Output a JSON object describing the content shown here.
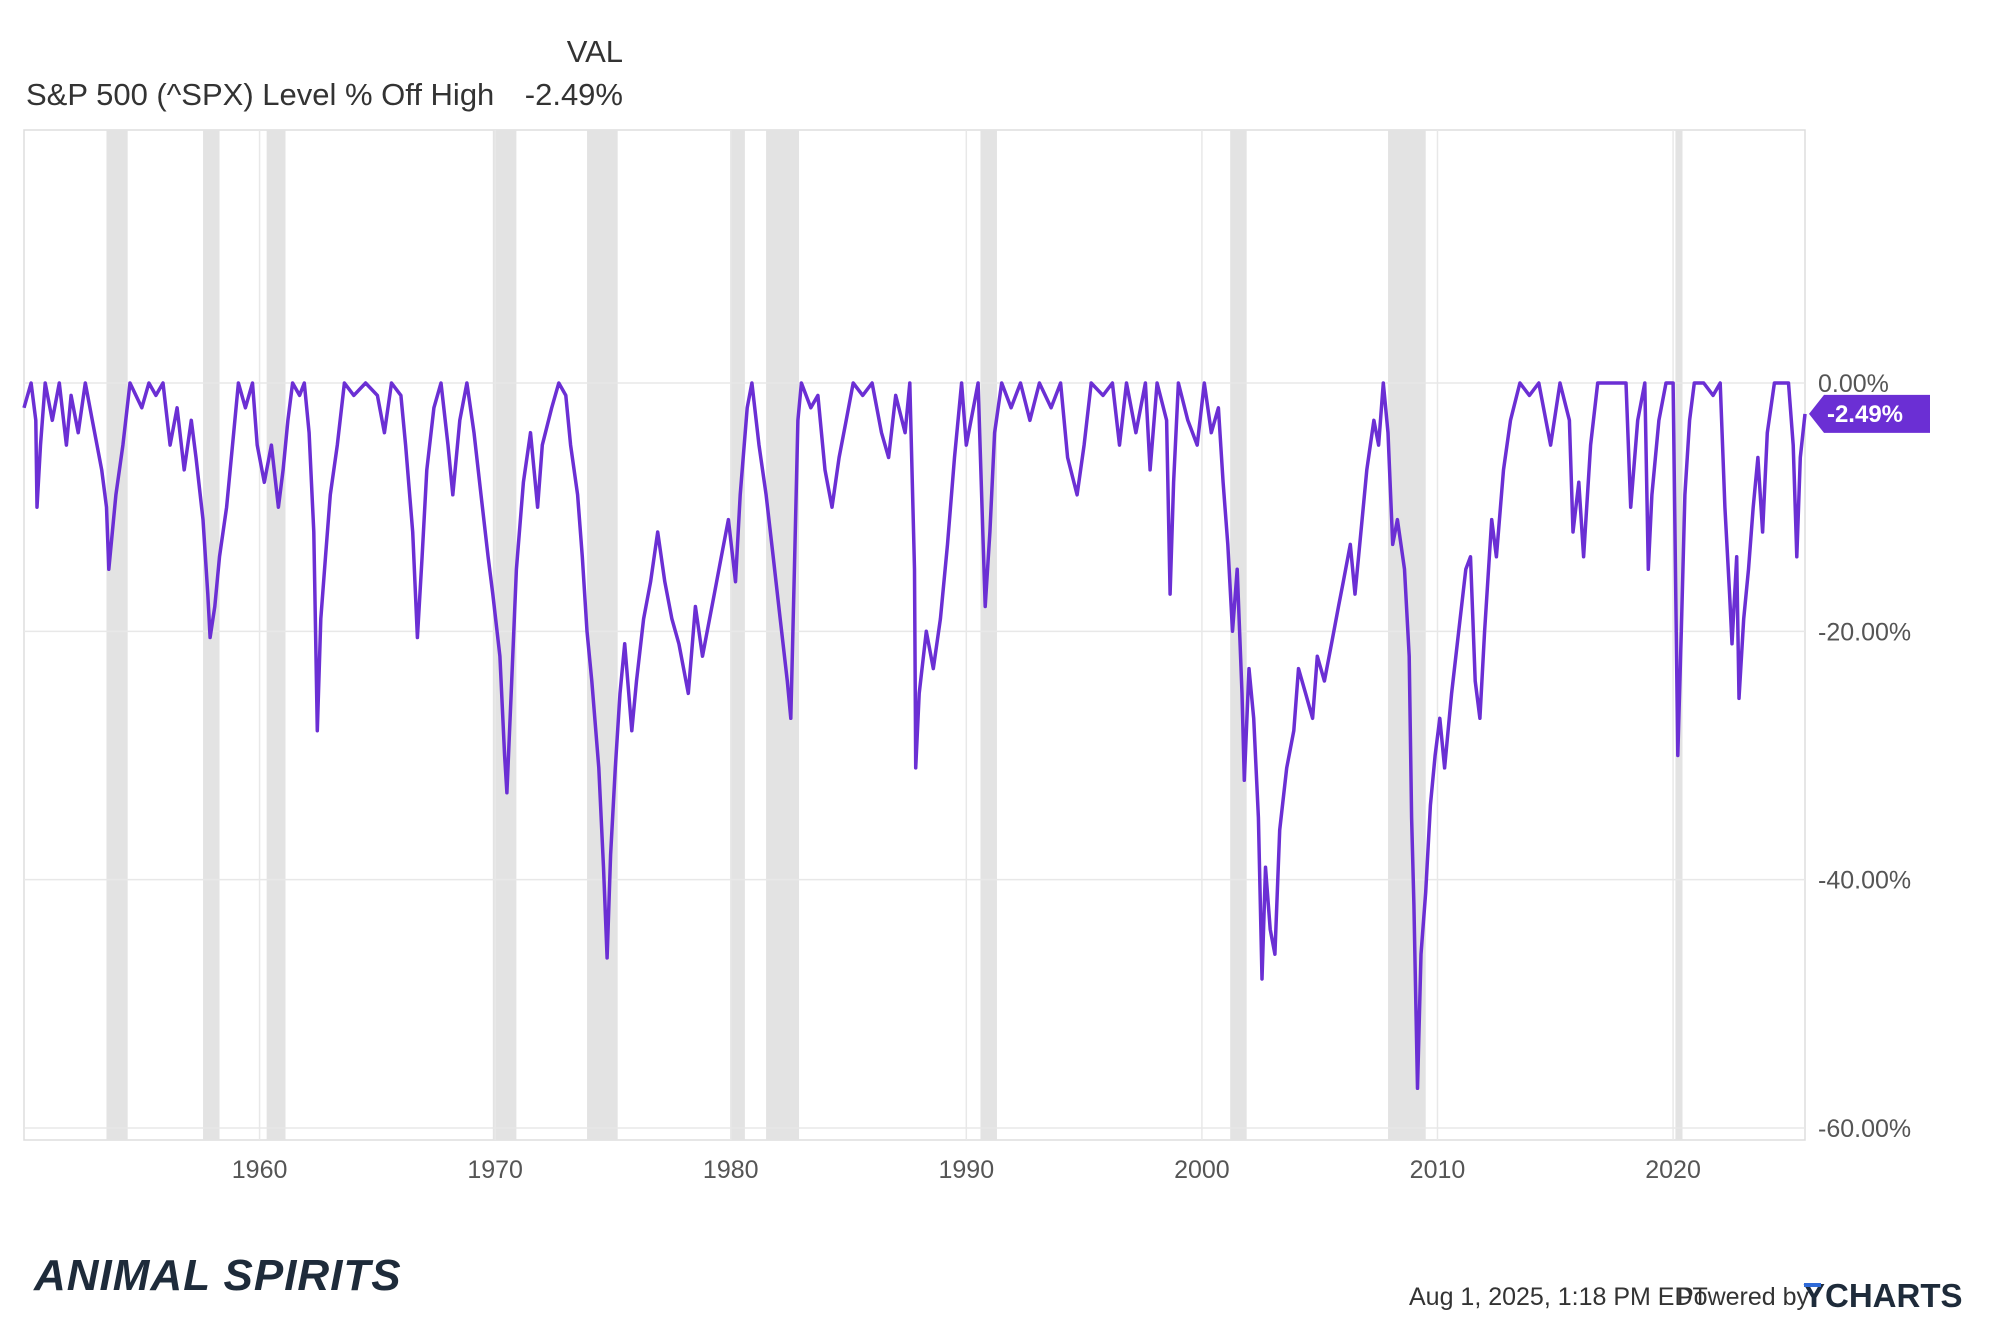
{
  "legend": {
    "header": "VAL",
    "series_label": "S&P 500 (^SPX) Level % Off High",
    "series_value": "-2.49%"
  },
  "footer": {
    "logo_text": "ANIMAL SPIRITS",
    "timestamp": "Aug 1, 2025, 1:18 PM EDT",
    "powered_by": "Powered by",
    "brand": "YCHARTS"
  },
  "colors": {
    "series": "#6B2FD4",
    "recession_band": "#E3E3E3",
    "grid": "#E8E8E8",
    "text": "#333333",
    "logo": "#1E2B3A"
  },
  "chart_data": {
    "type": "line",
    "title": "",
    "xlabel": "",
    "ylabel": "",
    "xlim": [
      1950.0,
      2025.6
    ],
    "ylim": [
      -60,
      20
    ],
    "x_ticks": [
      {
        "value": 1960,
        "label": "1960"
      },
      {
        "value": 1970,
        "label": "1970"
      },
      {
        "value": 1980,
        "label": "1980"
      },
      {
        "value": 1990,
        "label": "1990"
      },
      {
        "value": 2000,
        "label": "2000"
      },
      {
        "value": 2010,
        "label": "2010"
      },
      {
        "value": 2020,
        "label": "2020"
      }
    ],
    "y_ticks": [
      {
        "value": 0,
        "label": "0.00%"
      },
      {
        "value": -20,
        "label": "-20.00%"
      },
      {
        "value": -40,
        "label": "-40.00%"
      },
      {
        "value": -60,
        "label": "-60.00%"
      }
    ],
    "last_value_label": "-2.49%",
    "last_value": -2.49,
    "recessions": [
      [
        1953.5,
        1954.4
      ],
      [
        1957.6,
        1958.3
      ],
      [
        1960.3,
        1961.1
      ],
      [
        1969.9,
        1970.9
      ],
      [
        1973.9,
        1975.2
      ],
      [
        1980.0,
        1980.6
      ],
      [
        1981.5,
        1982.9
      ],
      [
        1990.6,
        1991.3
      ],
      [
        2001.2,
        2001.9
      ],
      [
        2007.9,
        2009.5
      ],
      [
        2020.1,
        2020.4
      ]
    ],
    "series": [
      {
        "name": "S&P 500 (^SPX) Level % Off High",
        "points": [
          [
            1950.0,
            -2
          ],
          [
            1950.3,
            0
          ],
          [
            1950.5,
            -3
          ],
          [
            1950.55,
            -10
          ],
          [
            1950.7,
            -5
          ],
          [
            1950.9,
            0
          ],
          [
            1951.2,
            -3
          ],
          [
            1951.5,
            0
          ],
          [
            1951.8,
            -5
          ],
          [
            1952.0,
            -1
          ],
          [
            1952.3,
            -4
          ],
          [
            1952.6,
            0
          ],
          [
            1952.9,
            -3
          ],
          [
            1953.1,
            -5
          ],
          [
            1953.3,
            -7
          ],
          [
            1953.5,
            -10
          ],
          [
            1953.6,
            -15
          ],
          [
            1953.9,
            -9
          ],
          [
            1954.2,
            -5
          ],
          [
            1954.5,
            0
          ],
          [
            1955.0,
            -2
          ],
          [
            1955.3,
            0
          ],
          [
            1955.6,
            -1
          ],
          [
            1955.9,
            0
          ],
          [
            1956.2,
            -5
          ],
          [
            1956.5,
            -2
          ],
          [
            1956.8,
            -7
          ],
          [
            1957.1,
            -3
          ],
          [
            1957.3,
            -6
          ],
          [
            1957.6,
            -11
          ],
          [
            1957.8,
            -17
          ],
          [
            1957.9,
            -20.5
          ],
          [
            1958.1,
            -18
          ],
          [
            1958.3,
            -14
          ],
          [
            1958.6,
            -10
          ],
          [
            1958.9,
            -4
          ],
          [
            1959.1,
            0
          ],
          [
            1959.4,
            -2
          ],
          [
            1959.7,
            0
          ],
          [
            1959.9,
            -5
          ],
          [
            1960.2,
            -8
          ],
          [
            1960.5,
            -5
          ],
          [
            1960.8,
            -10
          ],
          [
            1961.0,
            -7
          ],
          [
            1961.2,
            -3
          ],
          [
            1961.4,
            0
          ],
          [
            1961.7,
            -1
          ],
          [
            1961.9,
            0
          ],
          [
            1962.1,
            -4
          ],
          [
            1962.3,
            -12
          ],
          [
            1962.45,
            -28
          ],
          [
            1962.6,
            -19
          ],
          [
            1962.8,
            -14
          ],
          [
            1963.0,
            -9
          ],
          [
            1963.3,
            -5
          ],
          [
            1963.6,
            0
          ],
          [
            1964.0,
            -1
          ],
          [
            1964.5,
            0
          ],
          [
            1965.0,
            -1
          ],
          [
            1965.3,
            -4
          ],
          [
            1965.6,
            0
          ],
          [
            1966.0,
            -1
          ],
          [
            1966.2,
            -5
          ],
          [
            1966.5,
            -12
          ],
          [
            1966.7,
            -20.5
          ],
          [
            1966.9,
            -14
          ],
          [
            1967.1,
            -7
          ],
          [
            1967.4,
            -2
          ],
          [
            1967.7,
            0
          ],
          [
            1968.0,
            -5
          ],
          [
            1968.2,
            -9
          ],
          [
            1968.5,
            -3
          ],
          [
            1968.8,
            0
          ],
          [
            1969.1,
            -4
          ],
          [
            1969.4,
            -9
          ],
          [
            1969.7,
            -14
          ],
          [
            1969.9,
            -17
          ],
          [
            1970.2,
            -22
          ],
          [
            1970.4,
            -30
          ],
          [
            1970.5,
            -33
          ],
          [
            1970.7,
            -24
          ],
          [
            1970.9,
            -15
          ],
          [
            1971.2,
            -8
          ],
          [
            1971.5,
            -4
          ],
          [
            1971.8,
            -10
          ],
          [
            1972.0,
            -5
          ],
          [
            1972.4,
            -2
          ],
          [
            1972.7,
            0
          ],
          [
            1973.0,
            -1
          ],
          [
            1973.2,
            -5
          ],
          [
            1973.5,
            -9
          ],
          [
            1973.7,
            -14
          ],
          [
            1973.9,
            -20
          ],
          [
            1974.1,
            -24
          ],
          [
            1974.4,
            -31
          ],
          [
            1974.6,
            -39
          ],
          [
            1974.75,
            -46.3
          ],
          [
            1974.9,
            -38
          ],
          [
            1975.1,
            -31
          ],
          [
            1975.3,
            -25
          ],
          [
            1975.5,
            -21
          ],
          [
            1975.8,
            -28
          ],
          [
            1976.0,
            -24
          ],
          [
            1976.3,
            -19
          ],
          [
            1976.6,
            -16
          ],
          [
            1976.9,
            -12
          ],
          [
            1977.2,
            -16
          ],
          [
            1977.5,
            -19
          ],
          [
            1977.8,
            -21
          ],
          [
            1978.0,
            -23
          ],
          [
            1978.2,
            -25
          ],
          [
            1978.5,
            -18
          ],
          [
            1978.8,
            -22
          ],
          [
            1979.0,
            -20
          ],
          [
            1979.3,
            -17
          ],
          [
            1979.6,
            -14
          ],
          [
            1979.9,
            -11
          ],
          [
            1980.2,
            -16
          ],
          [
            1980.4,
            -9
          ],
          [
            1980.7,
            -2
          ],
          [
            1980.9,
            0
          ],
          [
            1981.2,
            -5
          ],
          [
            1981.5,
            -9
          ],
          [
            1981.8,
            -14
          ],
          [
            1982.1,
            -19
          ],
          [
            1982.4,
            -24
          ],
          [
            1982.55,
            -27
          ],
          [
            1982.7,
            -15
          ],
          [
            1982.85,
            -3
          ],
          [
            1983.0,
            0
          ],
          [
            1983.4,
            -2
          ],
          [
            1983.7,
            -1
          ],
          [
            1984.0,
            -7
          ],
          [
            1984.3,
            -10
          ],
          [
            1984.6,
            -6
          ],
          [
            1984.9,
            -3
          ],
          [
            1985.2,
            0
          ],
          [
            1985.6,
            -1
          ],
          [
            1986.0,
            0
          ],
          [
            1986.4,
            -4
          ],
          [
            1986.7,
            -6
          ],
          [
            1987.0,
            -1
          ],
          [
            1987.4,
            -4
          ],
          [
            1987.6,
            0
          ],
          [
            1987.8,
            -15
          ],
          [
            1987.85,
            -31
          ],
          [
            1988.0,
            -25
          ],
          [
            1988.3,
            -20
          ],
          [
            1988.6,
            -23
          ],
          [
            1988.9,
            -19
          ],
          [
            1989.2,
            -13
          ],
          [
            1989.5,
            -6
          ],
          [
            1989.8,
            0
          ],
          [
            1990.0,
            -5
          ],
          [
            1990.3,
            -2
          ],
          [
            1990.5,
            0
          ],
          [
            1990.7,
            -12
          ],
          [
            1990.8,
            -18
          ],
          [
            1991.0,
            -12
          ],
          [
            1991.2,
            -4
          ],
          [
            1991.5,
            0
          ],
          [
            1991.9,
            -2
          ],
          [
            1992.3,
            0
          ],
          [
            1992.7,
            -3
          ],
          [
            1993.1,
            0
          ],
          [
            1993.6,
            -2
          ],
          [
            1994.0,
            0
          ],
          [
            1994.3,
            -6
          ],
          [
            1994.7,
            -9
          ],
          [
            1995.0,
            -5
          ],
          [
            1995.3,
            0
          ],
          [
            1995.8,
            -1
          ],
          [
            1996.2,
            0
          ],
          [
            1996.5,
            -5
          ],
          [
            1996.8,
            0
          ],
          [
            1997.2,
            -4
          ],
          [
            1997.6,
            0
          ],
          [
            1997.8,
            -7
          ],
          [
            1998.1,
            0
          ],
          [
            1998.5,
            -3
          ],
          [
            1998.65,
            -17
          ],
          [
            1998.8,
            -8
          ],
          [
            1999.0,
            0
          ],
          [
            1999.4,
            -3
          ],
          [
            1999.8,
            -5
          ],
          [
            2000.1,
            0
          ],
          [
            2000.4,
            -4
          ],
          [
            2000.7,
            -2
          ],
          [
            2000.9,
            -8
          ],
          [
            2001.1,
            -13
          ],
          [
            2001.3,
            -20
          ],
          [
            2001.5,
            -15
          ],
          [
            2001.7,
            -25
          ],
          [
            2001.8,
            -32
          ],
          [
            2002.0,
            -23
          ],
          [
            2002.2,
            -27
          ],
          [
            2002.4,
            -35
          ],
          [
            2002.55,
            -48
          ],
          [
            2002.7,
            -39
          ],
          [
            2002.9,
            -44
          ],
          [
            2003.1,
            -46
          ],
          [
            2003.3,
            -36
          ],
          [
            2003.6,
            -31
          ],
          [
            2003.9,
            -28
          ],
          [
            2004.1,
            -23
          ],
          [
            2004.4,
            -25
          ],
          [
            2004.7,
            -27
          ],
          [
            2004.9,
            -22
          ],
          [
            2005.2,
            -24
          ],
          [
            2005.5,
            -21
          ],
          [
            2005.8,
            -18
          ],
          [
            2006.0,
            -16
          ],
          [
            2006.3,
            -13
          ],
          [
            2006.5,
            -17
          ],
          [
            2006.8,
            -11
          ],
          [
            2007.0,
            -7
          ],
          [
            2007.3,
            -3
          ],
          [
            2007.5,
            -5
          ],
          [
            2007.7,
            0
          ],
          [
            2007.9,
            -4
          ],
          [
            2008.1,
            -13
          ],
          [
            2008.3,
            -11
          ],
          [
            2008.6,
            -15
          ],
          [
            2008.8,
            -22
          ],
          [
            2008.9,
            -35
          ],
          [
            2009.0,
            -42
          ],
          [
            2009.15,
            -56.8
          ],
          [
            2009.3,
            -46
          ],
          [
            2009.5,
            -41
          ],
          [
            2009.7,
            -34
          ],
          [
            2009.9,
            -30
          ],
          [
            2010.1,
            -27
          ],
          [
            2010.3,
            -31
          ],
          [
            2010.6,
            -25
          ],
          [
            2010.9,
            -20
          ],
          [
            2011.2,
            -15
          ],
          [
            2011.4,
            -14
          ],
          [
            2011.6,
            -24
          ],
          [
            2011.8,
            -27
          ],
          [
            2012.0,
            -20
          ],
          [
            2012.3,
            -11
          ],
          [
            2012.5,
            -14
          ],
          [
            2012.8,
            -7
          ],
          [
            2013.1,
            -3
          ],
          [
            2013.5,
            0
          ],
          [
            2013.9,
            -1
          ],
          [
            2014.3,
            0
          ],
          [
            2014.8,
            -5
          ],
          [
            2015.2,
            0
          ],
          [
            2015.6,
            -3
          ],
          [
            2015.75,
            -12
          ],
          [
            2016.0,
            -8
          ],
          [
            2016.2,
            -14
          ],
          [
            2016.5,
            -5
          ],
          [
            2016.8,
            0
          ],
          [
            2017.2,
            0
          ],
          [
            2017.6,
            0
          ],
          [
            2018.0,
            0
          ],
          [
            2018.2,
            -10
          ],
          [
            2018.5,
            -3
          ],
          [
            2018.8,
            0
          ],
          [
            2018.95,
            -15
          ],
          [
            2019.1,
            -9
          ],
          [
            2019.4,
            -3
          ],
          [
            2019.7,
            0
          ],
          [
            2020.0,
            0
          ],
          [
            2020.2,
            -30
          ],
          [
            2020.35,
            -20
          ],
          [
            2020.5,
            -9
          ],
          [
            2020.7,
            -3
          ],
          [
            2020.9,
            0
          ],
          [
            2021.3,
            0
          ],
          [
            2021.7,
            -1
          ],
          [
            2022.0,
            0
          ],
          [
            2022.2,
            -10
          ],
          [
            2022.4,
            -17
          ],
          [
            2022.5,
            -21
          ],
          [
            2022.7,
            -14
          ],
          [
            2022.8,
            -25.4
          ],
          [
            2023.0,
            -19
          ],
          [
            2023.2,
            -15
          ],
          [
            2023.4,
            -10
          ],
          [
            2023.6,
            -6
          ],
          [
            2023.8,
            -12
          ],
          [
            2024.0,
            -4
          ],
          [
            2024.3,
            0
          ],
          [
            2024.6,
            0
          ],
          [
            2024.9,
            0
          ],
          [
            2025.1,
            -5
          ],
          [
            2025.25,
            -14
          ],
          [
            2025.4,
            -6
          ],
          [
            2025.6,
            -2.49
          ]
        ]
      }
    ]
  }
}
